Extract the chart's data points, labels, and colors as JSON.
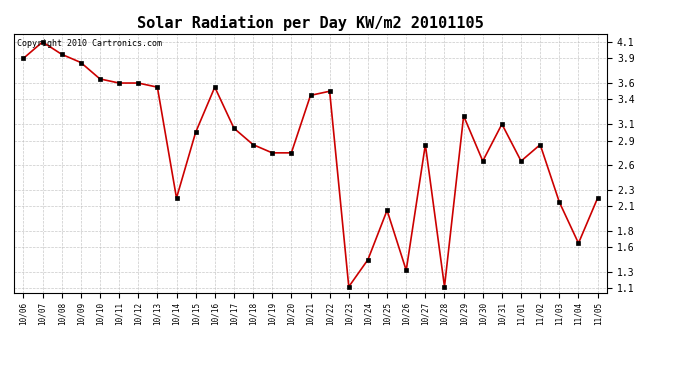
{
  "title": "Solar Radiation per Day KW/m2 20101105",
  "copyright": "Copyright 2010 Cartronics.com",
  "dates": [
    "10/06",
    "10/07",
    "10/08",
    "10/09",
    "10/10",
    "10/11",
    "10/12",
    "10/13",
    "10/14",
    "10/15",
    "10/16",
    "10/17",
    "10/18",
    "10/19",
    "10/20",
    "10/21",
    "10/22",
    "10/23",
    "10/24",
    "10/25",
    "10/26",
    "10/27",
    "10/28",
    "10/29",
    "10/30",
    "10/31",
    "11/01",
    "11/02",
    "11/03",
    "11/04",
    "11/05"
  ],
  "values": [
    3.9,
    4.1,
    3.95,
    3.85,
    3.65,
    3.6,
    3.6,
    3.55,
    2.2,
    3.0,
    3.55,
    3.05,
    2.85,
    2.75,
    2.75,
    3.45,
    3.5,
    1.12,
    1.45,
    2.05,
    1.32,
    2.85,
    1.12,
    3.2,
    2.65,
    3.1,
    2.65,
    2.85,
    2.15,
    1.65,
    2.2
  ],
  "line_color": "#cc0000",
  "marker_color": "#000000",
  "bg_color": "#ffffff",
  "grid_color": "#bbbbbb",
  "yticks": [
    1.1,
    1.3,
    1.6,
    1.8,
    2.1,
    2.3,
    2.6,
    2.9,
    3.1,
    3.4,
    3.6,
    3.9,
    4.1
  ],
  "ylim": [
    1.05,
    4.2
  ],
  "title_fontsize": 11,
  "copyright_fontsize": 6,
  "xtick_fontsize": 5.5,
  "ytick_fontsize": 7
}
